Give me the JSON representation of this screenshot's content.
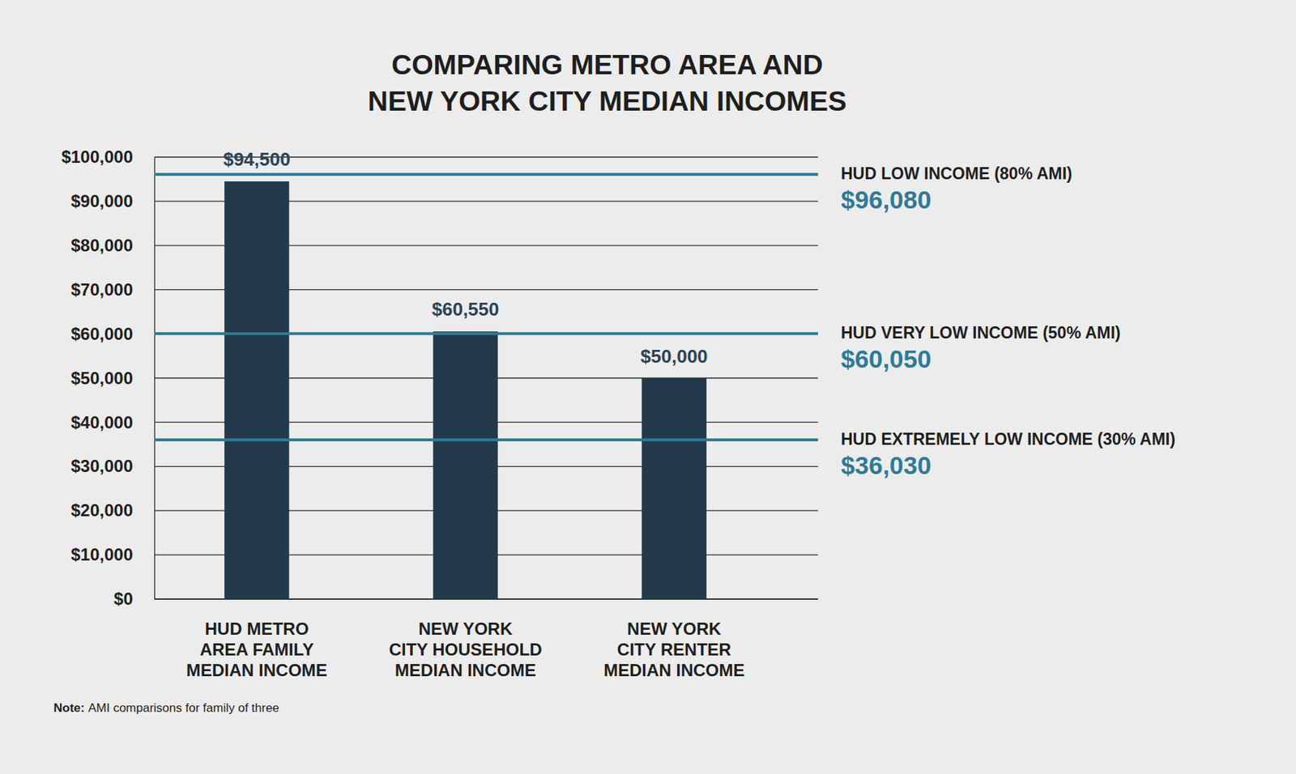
{
  "chart_data": {
    "type": "bar",
    "title": "COMPARING METRO AREA AND\nNEW YORK CITY MEDIAN INCOMES",
    "categories": [
      "HUD METRO\nAREA FAMILY\nMEDIAN INCOME",
      "NEW YORK\nCITY HOUSEHOLD\nMEDIAN INCOME",
      "NEW YORK\nCITY RENTER\nMEDIAN INCOME"
    ],
    "values": [
      94500,
      60550,
      50000
    ],
    "value_labels": [
      "$94,500",
      "$60,550",
      "$50,000"
    ],
    "data_labels": true,
    "color": "#223a4a",
    "ylim": [
      0,
      100000
    ],
    "yticks": [
      {
        "value": 0,
        "label": "$0"
      },
      {
        "value": 10000,
        "label": "$10,000"
      },
      {
        "value": 20000,
        "label": "$20,000"
      },
      {
        "value": 30000,
        "label": "$30,000"
      },
      {
        "value": 40000,
        "label": "$40,000"
      },
      {
        "value": 50000,
        "label": "$50,000"
      },
      {
        "value": 60000,
        "label": "$60,000"
      },
      {
        "value": 70000,
        "label": "$70,000"
      },
      {
        "value": 80000,
        "label": "$80,000"
      },
      {
        "value": 90000,
        "label": "$90,000"
      },
      {
        "value": 100000,
        "label": "$100,000"
      }
    ],
    "grid": true,
    "reference_lines": [
      {
        "label": "HUD LOW INCOME (80% AMI)",
        "value": 96080,
        "value_label": "$96,080",
        "color": "#2e7a96"
      },
      {
        "label": "HUD VERY LOW INCOME (50% AMI)",
        "value": 60050,
        "value_label": "$60,050",
        "color": "#2e7a96"
      },
      {
        "label": "HUD EXTREMELY LOW INCOME (30% AMI)",
        "value": 36030,
        "value_label": "$36,030",
        "color": "#2e7a96"
      }
    ],
    "note_label": "Note:",
    "note": "AMI comparisons for family of three"
  }
}
